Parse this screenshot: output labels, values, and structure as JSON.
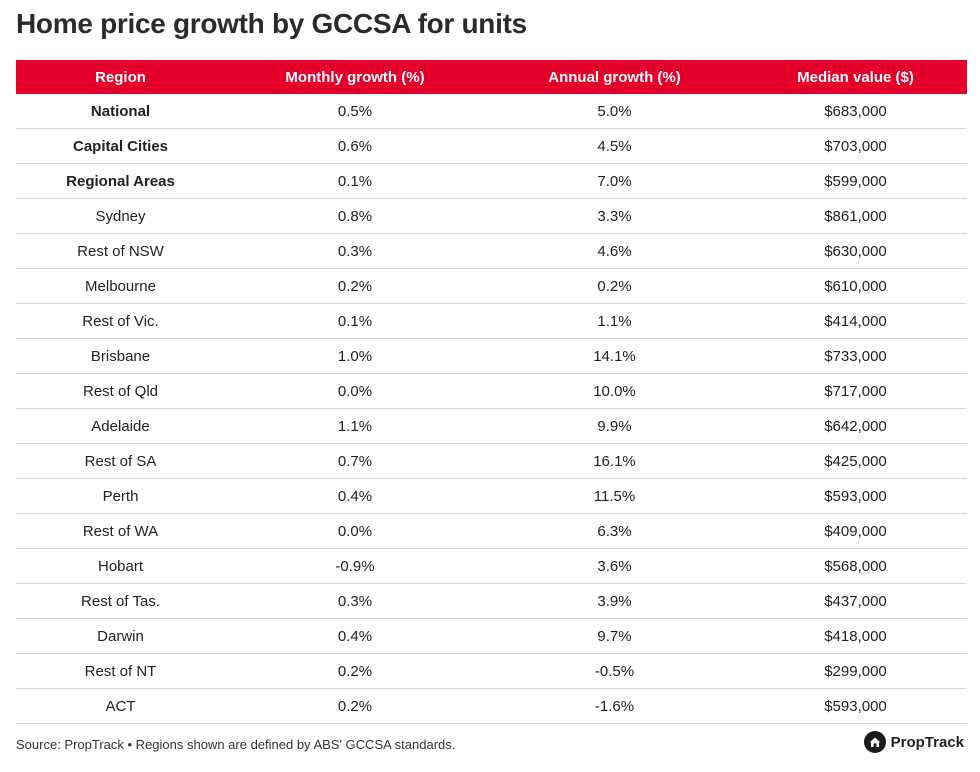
{
  "title": "Home price growth by GCCSA for units",
  "chart_data": {
    "type": "table",
    "title": "Home price growth by GCCSA for units",
    "columns": [
      "Region",
      "Monthly growth (%)",
      "Annual growth (%)",
      "Median value ($)"
    ],
    "rows": [
      {
        "region": "National",
        "monthly": "0.5%",
        "annual": "5.0%",
        "median": "$683,000",
        "bold": true
      },
      {
        "region": "Capital Cities",
        "monthly": "0.6%",
        "annual": "4.5%",
        "median": "$703,000",
        "bold": true
      },
      {
        "region": "Regional Areas",
        "monthly": "0.1%",
        "annual": "7.0%",
        "median": "$599,000",
        "bold": true
      },
      {
        "region": "Sydney",
        "monthly": "0.8%",
        "annual": "3.3%",
        "median": "$861,000",
        "bold": false
      },
      {
        "region": "Rest of NSW",
        "monthly": "0.3%",
        "annual": "4.6%",
        "median": "$630,000",
        "bold": false
      },
      {
        "region": "Melbourne",
        "monthly": "0.2%",
        "annual": "0.2%",
        "median": "$610,000",
        "bold": false
      },
      {
        "region": "Rest of Vic.",
        "monthly": "0.1%",
        "annual": "1.1%",
        "median": "$414,000",
        "bold": false
      },
      {
        "region": "Brisbane",
        "monthly": "1.0%",
        "annual": "14.1%",
        "median": "$733,000",
        "bold": false
      },
      {
        "region": "Rest of Qld",
        "monthly": "0.0%",
        "annual": "10.0%",
        "median": "$717,000",
        "bold": false
      },
      {
        "region": "Adelaide",
        "monthly": "1.1%",
        "annual": "9.9%",
        "median": "$642,000",
        "bold": false
      },
      {
        "region": "Rest of SA",
        "monthly": "0.7%",
        "annual": "16.1%",
        "median": "$425,000",
        "bold": false
      },
      {
        "region": "Perth",
        "monthly": "0.4%",
        "annual": "11.5%",
        "median": "$593,000",
        "bold": false
      },
      {
        "region": "Rest of WA",
        "monthly": "0.0%",
        "annual": "6.3%",
        "median": "$409,000",
        "bold": false
      },
      {
        "region": "Hobart",
        "monthly": "-0.9%",
        "annual": "3.6%",
        "median": "$568,000",
        "bold": false
      },
      {
        "region": "Rest of Tas.",
        "monthly": "0.3%",
        "annual": "3.9%",
        "median": "$437,000",
        "bold": false
      },
      {
        "region": "Darwin",
        "monthly": "0.4%",
        "annual": "9.7%",
        "median": "$418,000",
        "bold": false
      },
      {
        "region": "Rest of NT",
        "monthly": "0.2%",
        "annual": "-0.5%",
        "median": "$299,000",
        "bold": false
      },
      {
        "region": "ACT",
        "monthly": "0.2%",
        "annual": "-1.6%",
        "median": "$593,000",
        "bold": false
      }
    ]
  },
  "footer": {
    "source": "Source: PropTrack • Regions shown are defined by ABS' GCCSA standards."
  },
  "logo": {
    "text": "PropTrack",
    "icon": "house-icon"
  },
  "colors": {
    "header_bg": "#e4002b",
    "header_text": "#ffffff",
    "divider": "#d4d4d4"
  }
}
